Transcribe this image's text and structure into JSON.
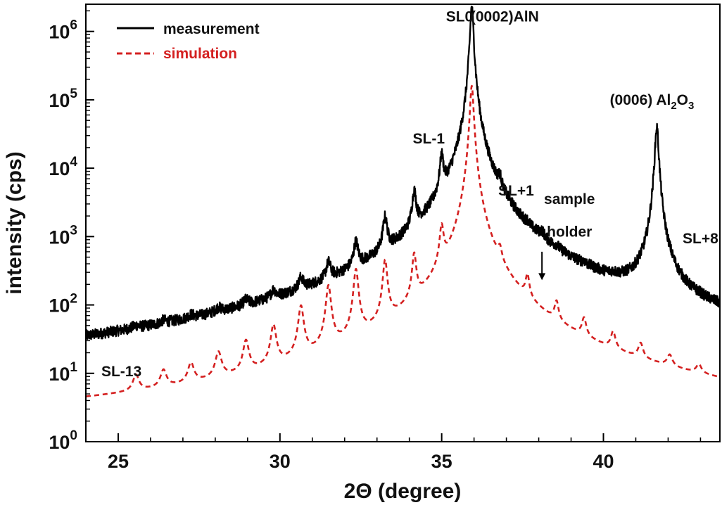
{
  "chart_data": {
    "type": "line",
    "xlabel": "2Θ (degree)",
    "ylabel": "intensity (cps)",
    "xlim": [
      24,
      43.6
    ],
    "ylim": [
      1,
      2500000
    ],
    "y_scale": "log",
    "x_ticks": [
      25,
      30,
      35,
      40
    ],
    "y_ticks": [
      {
        "value": 1,
        "base": "10",
        "exp": "0"
      },
      {
        "value": 10,
        "base": "10",
        "exp": "1"
      },
      {
        "value": 100,
        "base": "10",
        "exp": "2"
      },
      {
        "value": 1000,
        "base": "10",
        "exp": "3"
      },
      {
        "value": 10000,
        "base": "10",
        "exp": "4"
      },
      {
        "value": 100000,
        "base": "10",
        "exp": "5"
      },
      {
        "value": 1000000,
        "base": "10",
        "exp": "6"
      }
    ],
    "grid": false,
    "legend": {
      "placement": "top-left",
      "entries": [
        {
          "name": "measurement",
          "color": "#000000",
          "style": "solid"
        },
        {
          "name": "simulation",
          "color": "#d42020",
          "style": "dashed"
        }
      ]
    },
    "series": [
      {
        "name": "measurement",
        "color": "#000000",
        "baseline": [
          [
            24,
            1.9
          ],
          [
            28,
            1.9
          ],
          [
            31,
            2.0
          ],
          [
            32.5,
            3.0
          ],
          [
            33.2,
            5.0
          ],
          [
            34.0,
            10
          ],
          [
            34.6,
            25
          ],
          [
            35.2,
            60
          ],
          [
            35.6,
            200
          ],
          [
            35.95,
            1000
          ],
          [
            36.3,
            400
          ],
          [
            36.7,
            150
          ],
          [
            37.0,
            40
          ],
          [
            37.4,
            20
          ],
          [
            37.8,
            22
          ],
          [
            38.6,
            12
          ],
          [
            39.3,
            4
          ],
          [
            40.0,
            3
          ],
          [
            41.0,
            2.5
          ],
          [
            43.6,
            2.1
          ]
        ],
        "peaks": [
          {
            "x": 25.55,
            "y": 4,
            "w": 0.1
          },
          {
            "x": 26.4,
            "y": 5,
            "w": 0.1
          },
          {
            "x": 27.25,
            "y": 7,
            "w": 0.1
          },
          {
            "x": 28.1,
            "y": 12,
            "w": 0.1
          },
          {
            "x": 28.95,
            "y": 20,
            "w": 0.09
          },
          {
            "x": 29.8,
            "y": 38,
            "w": 0.085
          },
          {
            "x": 30.65,
            "y": 80,
            "w": 0.08
          },
          {
            "x": 31.5,
            "y": 180,
            "w": 0.075
          },
          {
            "x": 32.35,
            "y": 480,
            "w": 0.07
          },
          {
            "x": 33.25,
            "y": 1300,
            "w": 0.065
          },
          {
            "x": 34.15,
            "y": 3300,
            "w": 0.06
          },
          {
            "x": 35.0,
            "y": 11000,
            "w": 0.055
          },
          {
            "x": 35.93,
            "y": 2300000,
            "w": 0.045
          },
          {
            "x": 36.8,
            "y": 2200,
            "w": 0.055
          },
          {
            "x": 37.65,
            "y": 150,
            "w": 0.06
          },
          {
            "x": 38.1,
            "y": 200,
            "w": 0.09
          },
          {
            "x": 38.55,
            "y": 60,
            "w": 0.065
          },
          {
            "x": 39.4,
            "y": 32,
            "w": 0.07
          },
          {
            "x": 40.3,
            "y": 18,
            "w": 0.075
          },
          {
            "x": 41.15,
            "y": 11,
            "w": 0.08
          },
          {
            "x": 41.65,
            "y": 40000,
            "w": 0.05
          },
          {
            "x": 42.05,
            "y": 6,
            "w": 0.09
          },
          {
            "x": 42.95,
            "y": 3.5,
            "w": 0.09
          }
        ]
      },
      {
        "name": "simulation",
        "color": "#d42020",
        "baseline": [
          [
            24,
            1.6
          ],
          [
            29,
            1.6
          ],
          [
            31,
            1.8
          ],
          [
            33,
            2.0
          ],
          [
            34.5,
            2.6
          ],
          [
            35.4,
            5
          ],
          [
            35.8,
            20
          ],
          [
            35.95,
            60
          ],
          [
            36.1,
            20
          ],
          [
            36.5,
            5
          ],
          [
            37.0,
            2.8
          ],
          [
            38.5,
            2.2
          ],
          [
            40.0,
            1.9
          ],
          [
            43.6,
            1.8
          ]
        ],
        "peaks": [
          {
            "x": 25.55,
            "y": 4,
            "w": 0.1
          },
          {
            "x": 26.4,
            "y": 5,
            "w": 0.1
          },
          {
            "x": 27.25,
            "y": 7,
            "w": 0.1
          },
          {
            "x": 28.1,
            "y": 12,
            "w": 0.1
          },
          {
            "x": 28.95,
            "y": 20,
            "w": 0.09
          },
          {
            "x": 29.8,
            "y": 38,
            "w": 0.085
          },
          {
            "x": 30.65,
            "y": 80,
            "w": 0.08
          },
          {
            "x": 31.5,
            "y": 170,
            "w": 0.075
          },
          {
            "x": 32.35,
            "y": 300,
            "w": 0.07
          },
          {
            "x": 33.25,
            "y": 400,
            "w": 0.065
          },
          {
            "x": 34.15,
            "y": 450,
            "w": 0.06
          },
          {
            "x": 35.0,
            "y": 1100,
            "w": 0.06
          },
          {
            "x": 35.93,
            "y": 160000,
            "w": 0.05
          },
          {
            "x": 36.8,
            "y": 250,
            "w": 0.06
          },
          {
            "x": 37.65,
            "y": 150,
            "w": 0.06
          },
          {
            "x": 38.55,
            "y": 55,
            "w": 0.065
          },
          {
            "x": 39.4,
            "y": 30,
            "w": 0.07
          },
          {
            "x": 40.3,
            "y": 18,
            "w": 0.075
          },
          {
            "x": 41.15,
            "y": 11,
            "w": 0.08
          },
          {
            "x": 42.05,
            "y": 6,
            "w": 0.09
          },
          {
            "x": 42.95,
            "y": 3.5,
            "w": 0.09
          }
        ]
      }
    ],
    "annotations": [
      {
        "id": "sl0",
        "text": "SL0",
        "x": 35.55,
        "y": 1400000
      },
      {
        "id": "aln",
        "text": "(0002)AlN",
        "x": 36.95,
        "y": 1400000
      },
      {
        "id": "sl-1",
        "text": "SL-1",
        "x": 34.6,
        "y": 23000
      },
      {
        "id": "sl+1",
        "text": "SL+1",
        "x": 37.3,
        "y": 4000
      },
      {
        "id": "sample",
        "text": "sample",
        "x": 38.95,
        "y": 3000
      },
      {
        "id": "holder",
        "text": "holder",
        "x": 38.95,
        "y": 1000
      },
      {
        "id": "sl+8",
        "text": "SL+8",
        "x": 43.0,
        "y": 800
      },
      {
        "id": "sl-13",
        "text": "SL-13",
        "x": 25.1,
        "y": 9
      }
    ],
    "al2o3_label": {
      "prefix": "(0006) Al",
      "sub1": "2",
      "mid": "O",
      "sub2": "3",
      "x": 41.5,
      "y": 85000
    },
    "arrow": {
      "x": 38.1,
      "y_from": 600,
      "y_to": 230
    }
  }
}
